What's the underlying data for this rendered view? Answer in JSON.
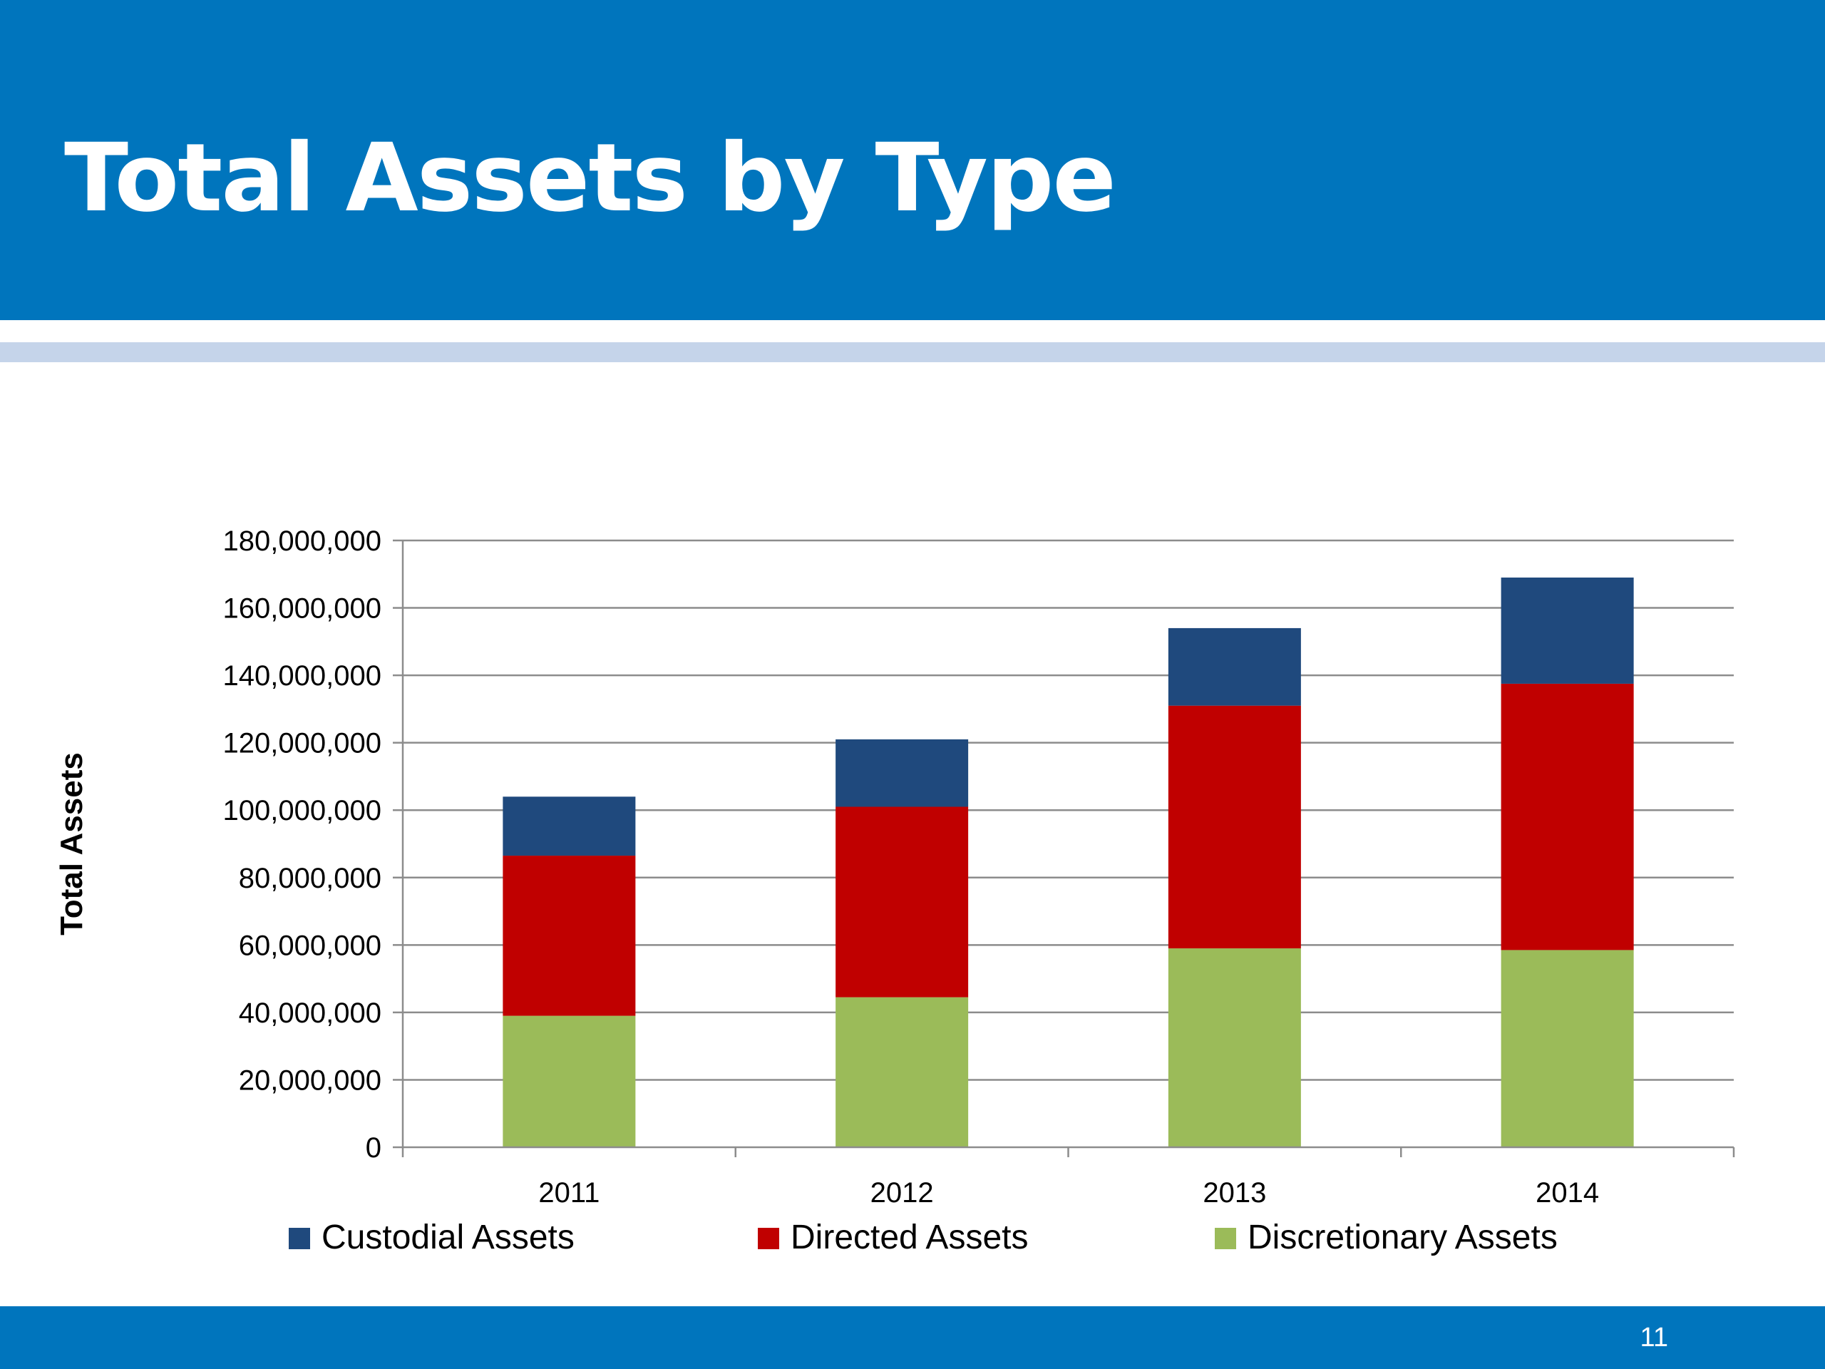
{
  "slide": {
    "title": "Total Assets by Type",
    "page_number": "11"
  },
  "colors": {
    "header": "#0075bd",
    "stripe": "#c5d4ea",
    "custodial": "#1f497d",
    "directed": "#c00000",
    "discretionary": "#9bbb59"
  },
  "chart_data": {
    "type": "bar",
    "stacked": true,
    "title": "",
    "xlabel": "",
    "ylabel": "Total Assets",
    "categories": [
      "2011",
      "2012",
      "2013",
      "2014"
    ],
    "ylim": [
      0,
      180000000
    ],
    "yticks": [
      0,
      20000000,
      40000000,
      60000000,
      80000000,
      100000000,
      120000000,
      140000000,
      160000000,
      180000000
    ],
    "ytick_labels": [
      "0",
      "20,000,000",
      "40,000,000",
      "60,000,000",
      "80,000,000",
      "100,000,000",
      "120,000,000",
      "140,000,000",
      "160,000,000",
      "180,000,000"
    ],
    "grid": true,
    "legend_position": "bottom",
    "series": [
      {
        "name": "Discretionary Assets",
        "color": "#9bbb59",
        "values": [
          39000000,
          44500000,
          59000000,
          58500000
        ]
      },
      {
        "name": "Directed Assets",
        "color": "#c00000",
        "values": [
          47500000,
          56500000,
          72000000,
          79000000
        ]
      },
      {
        "name": "Custodial Assets",
        "color": "#1f497d",
        "values": [
          17500000,
          20000000,
          23000000,
          31500000
        ]
      }
    ],
    "legend_order": [
      "Custodial Assets",
      "Directed Assets",
      "Discretionary Assets"
    ]
  }
}
